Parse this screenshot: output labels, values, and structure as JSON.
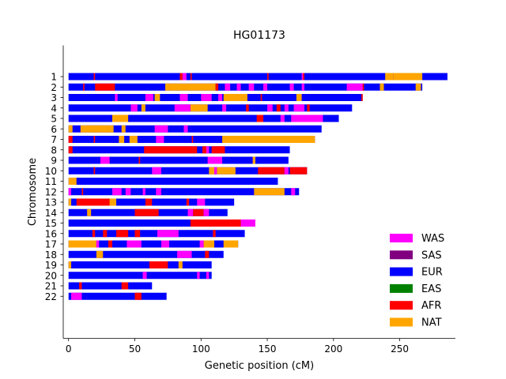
{
  "chart_data": {
    "type": "bar",
    "title": "HG01173",
    "xlabel": "Genetic position (cM)",
    "ylabel": "Chromosome",
    "xlim": [
      -4,
      292
    ],
    "x_ticks": [
      0,
      50,
      100,
      150,
      200,
      250
    ],
    "grid": false,
    "legend_position": "lower-right",
    "colors": {
      "WAS": "#ff00ff",
      "SAS": "#800080",
      "EUR": "#0000ff",
      "EAS": "#008000",
      "AFR": "#ff0000",
      "NAT": "#ffa500"
    },
    "legend": [
      "WAS",
      "SAS",
      "EUR",
      "EAS",
      "AFR",
      "NAT"
    ],
    "base_ancestry": "EUR",
    "chromosomes": [
      {
        "label": "1",
        "length": 286,
        "segments": [
          {
            "a": "NAT",
            "s": 239,
            "e": 245
          },
          {
            "a": "NAT",
            "s": 245,
            "e": 267
          },
          {
            "a": "AFR",
            "s": 19,
            "e": 20
          },
          {
            "a": "AFR",
            "s": 84,
            "e": 86
          },
          {
            "a": "WAS",
            "s": 86,
            "e": 89
          },
          {
            "a": "AFR",
            "s": 92,
            "e": 93
          },
          {
            "a": "AFR",
            "s": 150,
            "e": 151
          },
          {
            "a": "WAS",
            "s": 176,
            "e": 177
          },
          {
            "a": "AFR",
            "s": 177,
            "e": 178
          }
        ]
      },
      {
        "label": "2",
        "length": 267,
        "segments": [
          {
            "a": "AFR",
            "s": 20,
            "e": 35
          },
          {
            "a": "AFR",
            "s": 11,
            "e": 12
          },
          {
            "a": "NAT",
            "s": 73,
            "e": 76
          },
          {
            "a": "NAT",
            "s": 76,
            "e": 111
          },
          {
            "a": "AFR",
            "s": 111,
            "e": 113
          },
          {
            "a": "WAS",
            "s": 118,
            "e": 122
          },
          {
            "a": "WAS",
            "s": 127,
            "e": 130
          },
          {
            "a": "WAS",
            "s": 136,
            "e": 140
          },
          {
            "a": "WAS",
            "s": 147,
            "e": 150
          },
          {
            "a": "WAS",
            "s": 167,
            "e": 170
          },
          {
            "a": "WAS",
            "s": 176,
            "e": 178
          },
          {
            "a": "WAS",
            "s": 210,
            "e": 222
          },
          {
            "a": "AFR",
            "s": 222,
            "e": 223
          },
          {
            "a": "NAT",
            "s": 235,
            "e": 238
          },
          {
            "a": "NAT",
            "s": 262,
            "e": 266
          }
        ]
      },
      {
        "label": "3",
        "length": 222,
        "segments": [
          {
            "a": "WAS",
            "s": 58,
            "e": 64
          },
          {
            "a": "NAT",
            "s": 65,
            "e": 69
          },
          {
            "a": "WAS",
            "s": 84,
            "e": 90
          },
          {
            "a": "WAS",
            "s": 100,
            "e": 108
          },
          {
            "a": "NAT",
            "s": 117,
            "e": 135
          },
          {
            "a": "WAS",
            "s": 113,
            "e": 116
          },
          {
            "a": "NAT",
            "s": 172,
            "e": 176
          },
          {
            "a": "AFR",
            "s": 221,
            "e": 222
          },
          {
            "a": "WAS",
            "s": 35,
            "e": 37
          },
          {
            "a": "AFR",
            "s": 145,
            "e": 146
          }
        ]
      },
      {
        "label": "4",
        "length": 214,
        "segments": [
          {
            "a": "WAS",
            "s": 47,
            "e": 52
          },
          {
            "a": "NAT",
            "s": 55,
            "e": 58
          },
          {
            "a": "WAS",
            "s": 80,
            "e": 92
          },
          {
            "a": "NAT",
            "s": 92,
            "e": 105
          },
          {
            "a": "WAS",
            "s": 116,
            "e": 119
          },
          {
            "a": "AFR",
            "s": 134,
            "e": 136
          },
          {
            "a": "WAS",
            "s": 150,
            "e": 154
          },
          {
            "a": "AFR",
            "s": 157,
            "e": 160
          },
          {
            "a": "WAS",
            "s": 163,
            "e": 166
          },
          {
            "a": "WAS",
            "s": 170,
            "e": 178
          },
          {
            "a": "AFR",
            "s": 180,
            "e": 182
          }
        ]
      },
      {
        "label": "5",
        "length": 204,
        "segments": [
          {
            "a": "NAT",
            "s": 33,
            "e": 45
          },
          {
            "a": "AFR",
            "s": 142,
            "e": 147
          },
          {
            "a": "WAS",
            "s": 160,
            "e": 163
          },
          {
            "a": "WAS",
            "s": 168,
            "e": 192
          }
        ]
      },
      {
        "label": "6",
        "length": 191,
        "segments": [
          {
            "a": "NAT",
            "s": 0,
            "e": 3
          },
          {
            "a": "NAT",
            "s": 9,
            "e": 30
          },
          {
            "a": "NAT",
            "s": 30,
            "e": 31
          },
          {
            "a": "NAT",
            "s": 30,
            "e": 34
          },
          {
            "a": "NAT",
            "s": 40,
            "e": 43
          },
          {
            "a": "WAS",
            "s": 65,
            "e": 75
          },
          {
            "a": "WAS",
            "s": 87,
            "e": 90
          }
        ]
      },
      {
        "label": "7",
        "length": 186,
        "segments": [
          {
            "a": "AFR",
            "s": 0,
            "e": 3
          },
          {
            "a": "AFR",
            "s": 19,
            "e": 20
          },
          {
            "a": "NAT",
            "s": 38,
            "e": 42
          },
          {
            "a": "NAT",
            "s": 46,
            "e": 52
          },
          {
            "a": "WAS",
            "s": 66,
            "e": 72
          },
          {
            "a": "NAT",
            "s": 116,
            "e": 186
          },
          {
            "a": "AFR",
            "s": 93,
            "e": 94
          }
        ]
      },
      {
        "label": "8",
        "length": 167,
        "segments": [
          {
            "a": "AFR",
            "s": 0,
            "e": 3
          },
          {
            "a": "AFR",
            "s": 57,
            "e": 97
          },
          {
            "a": "AFR",
            "s": 101,
            "e": 104
          },
          {
            "a": "AFR",
            "s": 108,
            "e": 118
          },
          {
            "a": "WAS",
            "s": 104,
            "e": 106
          }
        ]
      },
      {
        "label": "9",
        "length": 166,
        "segments": [
          {
            "a": "WAS",
            "s": 24,
            "e": 31
          },
          {
            "a": "AFR",
            "s": 53,
            "e": 54
          },
          {
            "a": "WAS",
            "s": 105,
            "e": 116
          },
          {
            "a": "NAT",
            "s": 139,
            "e": 141
          }
        ]
      },
      {
        "label": "10",
        "length": 180,
        "segments": [
          {
            "a": "AFR",
            "s": 19,
            "e": 20
          },
          {
            "a": "WAS",
            "s": 63,
            "e": 70
          },
          {
            "a": "NAT",
            "s": 106,
            "e": 110
          },
          {
            "a": "WAS",
            "s": 110,
            "e": 112
          },
          {
            "a": "NAT",
            "s": 112,
            "e": 126
          },
          {
            "a": "AFR",
            "s": 143,
            "e": 163
          },
          {
            "a": "WAS",
            "s": 163,
            "e": 166
          },
          {
            "a": "AFR",
            "s": 167,
            "e": 180
          }
        ]
      },
      {
        "label": "11",
        "length": 158,
        "segments": [
          {
            "a": "NAT",
            "s": 0,
            "e": 6
          }
        ]
      },
      {
        "label": "12",
        "length": 174,
        "segments": [
          {
            "a": "WAS",
            "s": 0,
            "e": 2
          },
          {
            "a": "WAS",
            "s": 33,
            "e": 40
          },
          {
            "a": "WAS",
            "s": 43,
            "e": 47
          },
          {
            "a": "WAS",
            "s": 56,
            "e": 58
          },
          {
            "a": "WAS",
            "s": 66,
            "e": 70
          },
          {
            "a": "NAT",
            "s": 140,
            "e": 163
          },
          {
            "a": "WAS",
            "s": 168,
            "e": 171
          },
          {
            "a": "AFR",
            "s": 10,
            "e": 11
          }
        ]
      },
      {
        "label": "13",
        "length": 125,
        "segments": [
          {
            "a": "NAT",
            "s": 0,
            "e": 2
          },
          {
            "a": "AFR",
            "s": 6,
            "e": 32
          },
          {
            "a": "NAT",
            "s": 31,
            "e": 36
          },
          {
            "a": "AFR",
            "s": 58,
            "e": 63
          },
          {
            "a": "WAS",
            "s": 97,
            "e": 103
          },
          {
            "a": "AFR",
            "s": 89,
            "e": 91
          }
        ]
      },
      {
        "label": "14",
        "length": 120,
        "segments": [
          {
            "a": "NAT",
            "s": 14,
            "e": 17
          },
          {
            "a": "AFR",
            "s": 50,
            "e": 68
          },
          {
            "a": "WAS",
            "s": 90,
            "e": 94
          },
          {
            "a": "AFR",
            "s": 94,
            "e": 102
          },
          {
            "a": "WAS",
            "s": 102,
            "e": 106
          }
        ]
      },
      {
        "label": "15",
        "length": 140,
        "segments": [
          {
            "a": "AFR",
            "s": 92,
            "e": 130
          },
          {
            "a": "WAS",
            "s": 130,
            "e": 133
          },
          {
            "a": "WAS",
            "s": 133,
            "e": 141
          },
          {
            "a": "AFR",
            "s": 128,
            "e": 130
          }
        ]
      },
      {
        "label": "16",
        "length": 133,
        "segments": [
          {
            "a": "WAS",
            "s": 67,
            "e": 83
          },
          {
            "a": "AFR",
            "s": 18,
            "e": 20
          },
          {
            "a": "AFR",
            "s": 26,
            "e": 29
          },
          {
            "a": "AFR",
            "s": 36,
            "e": 45
          },
          {
            "a": "AFR",
            "s": 50,
            "e": 54
          },
          {
            "a": "AFR",
            "s": 109,
            "e": 111
          }
        ]
      },
      {
        "label": "17",
        "length": 128,
        "segments": [
          {
            "a": "NAT",
            "s": 0,
            "e": 21
          },
          {
            "a": "WAS",
            "s": 21,
            "e": 23
          },
          {
            "a": "AFR",
            "s": 30,
            "e": 33
          },
          {
            "a": "WAS",
            "s": 44,
            "e": 46
          },
          {
            "a": "WAS",
            "s": 45,
            "e": 55
          },
          {
            "a": "WAS",
            "s": 70,
            "e": 76
          },
          {
            "a": "WAS",
            "s": 99,
            "e": 102
          },
          {
            "a": "NAT",
            "s": 102,
            "e": 110
          },
          {
            "a": "NAT",
            "s": 117,
            "e": 128
          }
        ]
      },
      {
        "label": "18",
        "length": 117,
        "segments": [
          {
            "a": "NAT",
            "s": 21,
            "e": 26
          },
          {
            "a": "WAS",
            "s": 82,
            "e": 93
          },
          {
            "a": "AFR",
            "s": 103,
            "e": 106
          }
        ]
      },
      {
        "label": "19",
        "length": 108,
        "segments": [
          {
            "a": "NAT",
            "s": 0,
            "e": 2
          },
          {
            "a": "AFR",
            "s": 61,
            "e": 75
          },
          {
            "a": "NAT",
            "s": 83,
            "e": 86
          }
        ]
      },
      {
        "label": "20",
        "length": 108,
        "segments": [
          {
            "a": "WAS",
            "s": 56,
            "e": 59
          },
          {
            "a": "WAS",
            "s": 97,
            "e": 99
          },
          {
            "a": "WAS",
            "s": 104,
            "e": 106
          }
        ]
      },
      {
        "label": "21",
        "length": 63,
        "segments": [
          {
            "a": "AFR",
            "s": 8,
            "e": 10
          },
          {
            "a": "AFR",
            "s": 40,
            "e": 45
          }
        ]
      },
      {
        "label": "22",
        "length": 74,
        "segments": [
          {
            "a": "WAS",
            "s": 2,
            "e": 10
          },
          {
            "a": "AFR",
            "s": 50,
            "e": 55
          }
        ]
      }
    ]
  }
}
